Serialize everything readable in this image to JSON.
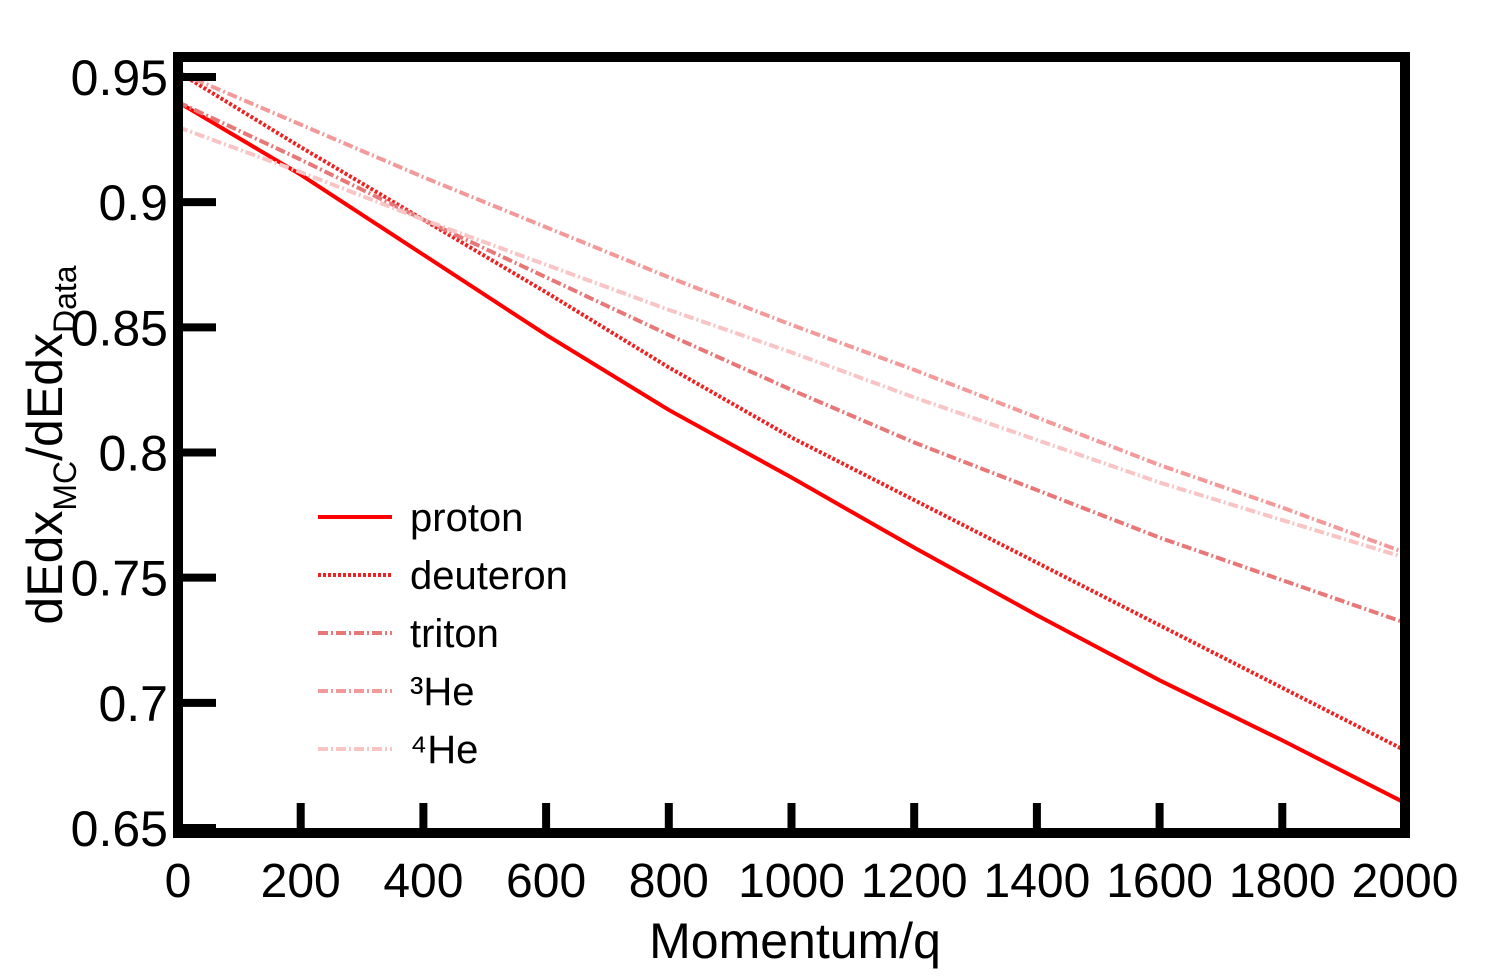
{
  "chart_data": {
    "type": "line",
    "x_label": "Momentum/q",
    "y_label_parts": [
      "dEdx",
      "MC",
      "/dEdx",
      "Data"
    ],
    "x": [
      0,
      200,
      400,
      600,
      800,
      1000,
      1200,
      1400,
      1600,
      1800,
      2000
    ],
    "series": [
      {
        "name": "proton",
        "color": "#ff0000",
        "dash": "solid",
        "values": [
          0.94,
          0.911,
          0.879,
          0.847,
          0.817,
          0.79,
          0.762,
          0.735,
          0.709,
          0.685,
          0.66
        ]
      },
      {
        "name": "deuteron",
        "color": "#ee2222",
        "dash": "dotted",
        "values": [
          0.952,
          0.922,
          0.893,
          0.864,
          0.834,
          0.806,
          0.781,
          0.756,
          0.731,
          0.706,
          0.681
        ]
      },
      {
        "name": "triton",
        "color": "#e87878",
        "dash": "dashdot",
        "values": [
          0.94,
          0.917,
          0.893,
          0.87,
          0.847,
          0.825,
          0.804,
          0.785,
          0.766,
          0.749,
          0.732
        ]
      },
      {
        "name": "³He",
        "color": "#f29a9a",
        "dash": "dashdot",
        "values": [
          0.952,
          0.931,
          0.91,
          0.89,
          0.87,
          0.851,
          0.833,
          0.814,
          0.795,
          0.778,
          0.76
        ]
      },
      {
        "name": "⁴He",
        "color": "#f8c4c4",
        "dash": "dashdot",
        "values": [
          0.93,
          0.912,
          0.893,
          0.875,
          0.857,
          0.84,
          0.822,
          0.805,
          0.788,
          0.773,
          0.758
        ]
      }
    ],
    "xlim": [
      0,
      2000
    ],
    "xticks": [
      0,
      200,
      400,
      600,
      800,
      1000,
      1200,
      1400,
      1600,
      1800,
      2000
    ],
    "ylim": [
      0.648,
      0.958
    ],
    "yticks": [
      0.65,
      0.7,
      0.75,
      0.8,
      0.85,
      0.9,
      0.95
    ],
    "legend": "lower left"
  }
}
